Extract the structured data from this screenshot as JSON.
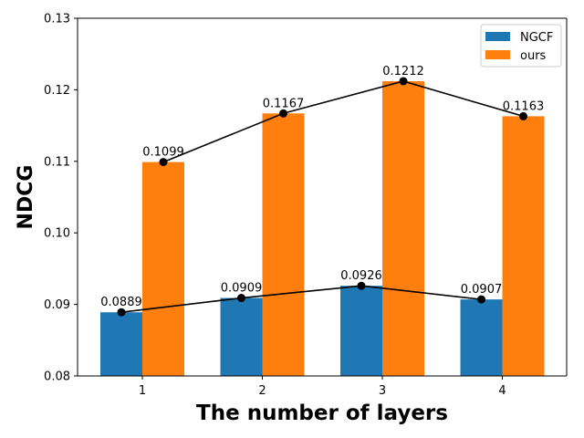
{
  "chart_data": {
    "type": "bar",
    "categories": [
      "1",
      "2",
      "3",
      "4"
    ],
    "series": [
      {
        "name": "NGCF",
        "values": [
          0.0889,
          0.0909,
          0.0926,
          0.0907
        ],
        "color": "#1f77b4"
      },
      {
        "name": "ours",
        "values": [
          0.1099,
          0.1167,
          0.1212,
          0.1163
        ],
        "color": "#ff7f0e"
      }
    ],
    "data_labels": {
      "NGCF": [
        "0.0889",
        "0.0909",
        "0.0926",
        "0.0907"
      ],
      "ours": [
        "0.1099",
        "0.1167",
        "0.1212",
        "0.1163"
      ]
    },
    "overlay_lines": "line with dot markers connecting each series' bar tops",
    "line_color": "#000000",
    "xlabel": "The number of layers",
    "ylabel": "NDCG",
    "ylim": [
      0.08,
      0.13
    ],
    "yticks": [
      "0.08",
      "0.09",
      "0.10",
      "0.11",
      "0.12",
      "0.13"
    ],
    "grid": false,
    "legend_position": "top-right"
  }
}
